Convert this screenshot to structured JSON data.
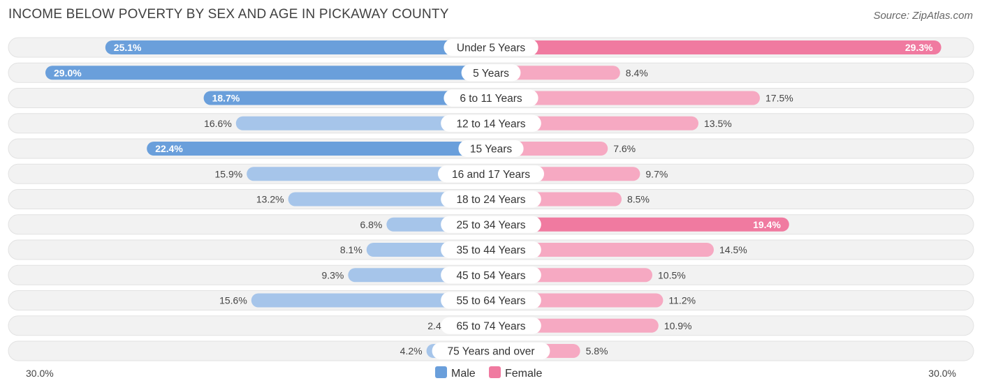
{
  "chart_data": {
    "type": "bar",
    "orientation": "horizontal-diverging",
    "title": "INCOME BELOW POVERTY BY SEX AND AGE IN PICKAWAY COUNTY",
    "source": "Source: ZipAtlas.com",
    "categories": [
      "Under 5 Years",
      "5 Years",
      "6 to 11 Years",
      "12 to 14 Years",
      "15 Years",
      "16 and 17 Years",
      "18 to 24 Years",
      "25 to 34 Years",
      "35 to 44 Years",
      "45 to 54 Years",
      "55 to 64 Years",
      "65 to 74 Years",
      "75 Years and over"
    ],
    "series": [
      {
        "name": "Male",
        "values": [
          25.1,
          29.0,
          18.7,
          16.6,
          22.4,
          15.9,
          13.2,
          6.8,
          8.1,
          9.3,
          15.6,
          2.4,
          4.2
        ],
        "labels": [
          "25.1%",
          "29.0%",
          "18.7%",
          "16.6%",
          "22.4%",
          "15.9%",
          "13.2%",
          "6.8%",
          "8.1%",
          "9.3%",
          "15.6%",
          "2.4%",
          "4.2%"
        ]
      },
      {
        "name": "Female",
        "values": [
          29.3,
          8.4,
          17.5,
          13.5,
          7.6,
          9.7,
          8.5,
          19.4,
          14.5,
          10.5,
          11.2,
          10.9,
          5.8
        ],
        "labels": [
          "29.3%",
          "8.4%",
          "17.5%",
          "13.5%",
          "7.6%",
          "9.7%",
          "8.5%",
          "19.4%",
          "14.5%",
          "10.5%",
          "11.2%",
          "10.9%",
          "5.8%"
        ]
      }
    ],
    "xlim": [
      -30,
      30
    ],
    "axis_labels": {
      "left": "30.0%",
      "right": "30.0%"
    },
    "legend": [
      "Male",
      "Female"
    ],
    "legend_position": "bottom-center"
  },
  "colors": {
    "male_strong": "#6a9fdb",
    "male_light": "#a6c5ea",
    "female_strong": "#f07aa0",
    "female_light": "#f6a9c2"
  }
}
